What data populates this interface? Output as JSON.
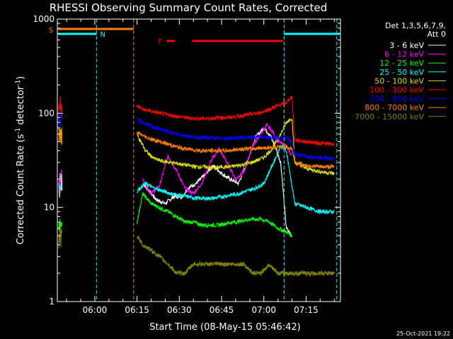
{
  "chart_data": {
    "type": "line",
    "title": "RHESSI Observing Summary Count Rates, Corrected",
    "xlabel": "Start Time (08-May-15 05:46:42)",
    "ylabel_main": "Corrected Count Rate (s",
    "ylabel_sup1": "-1",
    "ylabel_mid": " detector",
    "ylabel_sup2": "-1",
    "ylabel_end": ")",
    "y_scale": "log",
    "ylim": [
      1,
      1000
    ],
    "xlim_minutes": [
      346.7,
      447.2
    ],
    "x_ticks": [
      {
        "label": "06:00",
        "minute": 360
      },
      {
        "label": "06:15",
        "minute": 375
      },
      {
        "label": "06:30",
        "minute": 390
      },
      {
        "label": "06:45",
        "minute": 405
      },
      {
        "label": "07:00",
        "minute": 420
      },
      {
        "label": "07:15",
        "minute": 435
      }
    ],
    "y_ticks": [
      {
        "label": "1",
        "value": 1
      },
      {
        "label": "10",
        "value": 10
      },
      {
        "label": "100",
        "value": 100
      },
      {
        "label": "1000",
        "value": 1000
      }
    ],
    "legend_header_1": "Det 1,3,5,6,7,9,",
    "legend_header_2": "Att 0",
    "legend_position": "outside-right",
    "series": [
      {
        "name": "3 - 6 keV",
        "color": "#ffffff",
        "points": [
          [
            377,
            18
          ],
          [
            382,
            12
          ],
          [
            385,
            11
          ],
          [
            388,
            13
          ],
          [
            391,
            13
          ],
          [
            393,
            16
          ],
          [
            396,
            18
          ],
          [
            399,
            22
          ],
          [
            402,
            28
          ],
          [
            405,
            23
          ],
          [
            408,
            20
          ],
          [
            411,
            18
          ],
          [
            414,
            30
          ],
          [
            417,
            55
          ],
          [
            420,
            70
          ],
          [
            422,
            60
          ],
          [
            424,
            45
          ],
          [
            426,
            30
          ],
          [
            428,
            6
          ],
          [
            430,
            5
          ]
        ]
      },
      {
        "name": "6 - 12 keV",
        "color": "#ff00ff",
        "points": [
          [
            377,
            20
          ],
          [
            380,
            14
          ],
          [
            383,
            17
          ],
          [
            386,
            35
          ],
          [
            389,
            25
          ],
          [
            392,
            16
          ],
          [
            395,
            14
          ],
          [
            398,
            18
          ],
          [
            401,
            30
          ],
          [
            404,
            42
          ],
          [
            407,
            30
          ],
          [
            410,
            20
          ],
          [
            413,
            24
          ],
          [
            416,
            45
          ],
          [
            419,
            60
          ],
          [
            421,
            75
          ],
          [
            423,
            65
          ],
          [
            425,
            50
          ],
          [
            428,
            45
          ],
          [
            430,
            35
          ]
        ]
      },
      {
        "name": "12 - 25 keV",
        "color": "#00ff00",
        "points": [
          [
            375,
            7
          ],
          [
            377,
            14
          ],
          [
            380,
            11
          ],
          [
            383,
            10
          ],
          [
            386,
            9
          ],
          [
            389,
            8
          ],
          [
            392,
            7
          ],
          [
            395,
            7
          ],
          [
            398,
            6.5
          ],
          [
            401,
            6.5
          ],
          [
            404,
            6.5
          ],
          [
            407,
            6.8
          ],
          [
            410,
            7
          ],
          [
            413,
            7.3
          ],
          [
            416,
            7.5
          ],
          [
            419,
            7.5
          ],
          [
            422,
            7
          ],
          [
            425,
            6
          ],
          [
            428,
            5.5
          ],
          [
            430,
            5
          ]
        ]
      },
      {
        "name": "25 - 50 keV",
        "color": "#00ffff",
        "points": [
          [
            375,
            15
          ],
          [
            378,
            18
          ],
          [
            381,
            16
          ],
          [
            384,
            15
          ],
          [
            387,
            14
          ],
          [
            390,
            13.5
          ],
          [
            393,
            13
          ],
          [
            396,
            12.5
          ],
          [
            399,
            12.5
          ],
          [
            402,
            12.5
          ],
          [
            405,
            13
          ],
          [
            408,
            13.5
          ],
          [
            411,
            14
          ],
          [
            414,
            15
          ],
          [
            417,
            16
          ],
          [
            420,
            18
          ],
          [
            423,
            28
          ],
          [
            426,
            45
          ],
          [
            428,
            40
          ],
          [
            431,
            11
          ],
          [
            435,
            10
          ],
          [
            440,
            9
          ],
          [
            445,
            9
          ]
        ]
      },
      {
        "name": "50 - 100 keV",
        "color": "#dddd00",
        "points": [
          [
            375,
            60
          ],
          [
            378,
            40
          ],
          [
            381,
            33
          ],
          [
            384,
            31
          ],
          [
            387,
            30
          ],
          [
            390,
            29
          ],
          [
            393,
            28
          ],
          [
            396,
            27
          ],
          [
            399,
            27
          ],
          [
            402,
            26
          ],
          [
            405,
            27
          ],
          [
            408,
            27
          ],
          [
            411,
            28
          ],
          [
            414,
            29
          ],
          [
            417,
            31
          ],
          [
            420,
            34
          ],
          [
            423,
            42
          ],
          [
            426,
            60
          ],
          [
            428,
            80
          ],
          [
            430,
            90
          ],
          [
            431,
            30
          ],
          [
            435,
            26
          ],
          [
            440,
            24
          ],
          [
            445,
            23
          ]
        ]
      },
      {
        "name": "100 - 300 keV",
        "color": "#ff0000",
        "points": [
          [
            375,
            120
          ],
          [
            377,
            110
          ],
          [
            380,
            105
          ],
          [
            383,
            100
          ],
          [
            386,
            96
          ],
          [
            389,
            93
          ],
          [
            392,
            90
          ],
          [
            395,
            88
          ],
          [
            398,
            88
          ],
          [
            401,
            88
          ],
          [
            404,
            90
          ],
          [
            407,
            90
          ],
          [
            410,
            92
          ],
          [
            413,
            95
          ],
          [
            416,
            98
          ],
          [
            419,
            102
          ],
          [
            422,
            110
          ],
          [
            425,
            120
          ],
          [
            428,
            130
          ],
          [
            430,
            150
          ],
          [
            431,
            52
          ],
          [
            435,
            50
          ],
          [
            440,
            48
          ],
          [
            445,
            47
          ]
        ]
      },
      {
        "name": "300 - 800 keV",
        "color": "#0000ff",
        "points": [
          [
            375,
            85
          ],
          [
            377,
            80
          ],
          [
            380,
            72
          ],
          [
            383,
            68
          ],
          [
            386,
            64
          ],
          [
            389,
            60
          ],
          [
            392,
            58
          ],
          [
            395,
            56
          ],
          [
            398,
            55
          ],
          [
            401,
            55
          ],
          [
            404,
            54
          ],
          [
            407,
            54
          ],
          [
            410,
            55
          ],
          [
            413,
            55
          ],
          [
            416,
            56
          ],
          [
            419,
            56
          ],
          [
            422,
            55
          ],
          [
            425,
            55
          ],
          [
            428,
            55
          ],
          [
            430,
            50
          ],
          [
            431,
            37
          ],
          [
            435,
            35
          ],
          [
            440,
            34
          ],
          [
            445,
            33
          ]
        ]
      },
      {
        "name": "800 - 7000 keV",
        "color": "#ff8000",
        "points": [
          [
            375,
            62
          ],
          [
            377,
            58
          ],
          [
            380,
            53
          ],
          [
            383,
            50
          ],
          [
            386,
            47
          ],
          [
            389,
            44
          ],
          [
            392,
            42
          ],
          [
            395,
            41
          ],
          [
            398,
            40
          ],
          [
            401,
            40
          ],
          [
            404,
            40
          ],
          [
            407,
            40
          ],
          [
            410,
            41
          ],
          [
            413,
            42
          ],
          [
            416,
            42
          ],
          [
            419,
            43
          ],
          [
            422,
            43
          ],
          [
            425,
            44
          ],
          [
            428,
            44
          ],
          [
            430,
            42
          ],
          [
            431,
            30
          ],
          [
            435,
            28
          ],
          [
            440,
            27
          ],
          [
            445,
            27
          ]
        ]
      },
      {
        "name": "7000 - 15000 keV",
        "color": "#808000",
        "points": [
          [
            375,
            5
          ],
          [
            377,
            4
          ],
          [
            380,
            3.5
          ],
          [
            383,
            3
          ],
          [
            386,
            2.5
          ],
          [
            389,
            2
          ],
          [
            392,
            2
          ],
          [
            395,
            2.5
          ],
          [
            398,
            2.5
          ],
          [
            401,
            2.5
          ],
          [
            404,
            2.5
          ],
          [
            407,
            2.5
          ],
          [
            410,
            2.5
          ],
          [
            413,
            2.5
          ],
          [
            416,
            2
          ],
          [
            419,
            2
          ],
          [
            422,
            2.5
          ],
          [
            425,
            2
          ],
          [
            428,
            2
          ],
          [
            431,
            2
          ],
          [
            435,
            2
          ],
          [
            440,
            2
          ],
          [
            445,
            2
          ]
        ]
      }
    ],
    "early_segment_minutes": [
      347.2,
      348.5
    ],
    "flag_bars": [
      {
        "label": "S",
        "color": "#ff8000",
        "start_minute": 346.7,
        "end_minute": 373.8
      },
      {
        "label": "N",
        "color": "#00ffff",
        "start_minute": 346.7,
        "end_minute": 360.6
      },
      {
        "label": "",
        "color": "#00ffff",
        "start_minute": 427.2,
        "end_minute": 447.2
      },
      {
        "label": "F",
        "color": "#ff0000",
        "start_minute": 385.5,
        "end_minute": 388.5
      },
      {
        "label": "",
        "color": "#ff0000",
        "start_minute": 394.5,
        "end_minute": 426.8
      }
    ],
    "vertical_markers": [
      {
        "minute": 360.6,
        "color": "#00ffff"
      },
      {
        "minute": 373.8,
        "color": "#ff8000"
      },
      {
        "minute": 427.2,
        "color": "#00ffff"
      },
      {
        "minute": 445.9,
        "color": "#00ffff"
      }
    ]
  },
  "timestamp": "25-Oct-2021 19:22"
}
